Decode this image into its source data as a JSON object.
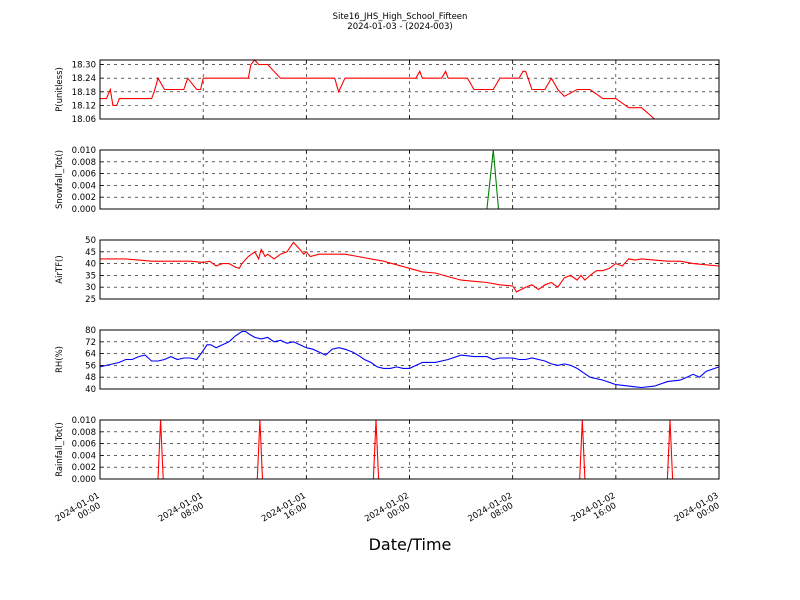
{
  "figure": {
    "title_line1": "Site16_JHS_High_School_Fifteen",
    "title_line2": "2024-01-03 - (2024-003)",
    "xlabel": "Date/Time",
    "x_ticks": [
      {
        "line1": "2024-01-01",
        "line2": "00:00",
        "hours": 0
      },
      {
        "line1": "2024-01-01",
        "line2": "08:00",
        "hours": 8
      },
      {
        "line1": "2024-01-01",
        "line2": "16:00",
        "hours": 16
      },
      {
        "line1": "2024-01-02",
        "line2": "00:00",
        "hours": 24
      },
      {
        "line1": "2024-01-02",
        "line2": "08:00",
        "hours": 32
      },
      {
        "line1": "2024-01-02",
        "line2": "16:00",
        "hours": 40
      },
      {
        "line1": "2024-01-03",
        "line2": "00:00",
        "hours": 48
      }
    ]
  },
  "chart_data": [
    {
      "type": "line",
      "ylabel": "P(unitless)",
      "ylim": [
        18.06,
        18.32
      ],
      "yticks": [
        "18.06",
        "18.12",
        "18.18",
        "18.24",
        "18.30"
      ],
      "ytick_values": [
        18.06,
        18.12,
        18.18,
        18.24,
        18.3
      ],
      "xlim": [
        0,
        48
      ],
      "color": "#ff0000",
      "grid": true,
      "x": [
        0,
        0.5,
        0.8,
        1.0,
        1.3,
        1.5,
        2,
        3,
        4,
        4.2,
        4.5,
        5,
        6,
        6.5,
        6.8,
        7.5,
        7.8,
        8,
        9,
        10,
        11,
        11.5,
        11.7,
        12,
        12.3,
        12.6,
        13,
        14,
        14.2,
        15,
        16,
        17,
        18,
        18.2,
        18.5,
        19,
        20,
        21,
        22,
        24,
        24.5,
        24.8,
        25,
        26,
        26.5,
        26.8,
        27,
        28,
        28.5,
        29,
        30,
        30.5,
        31,
        31.5,
        31.8,
        32,
        32.5,
        32.8,
        33,
        33.5,
        34,
        34.5,
        35,
        35.5,
        36,
        37,
        38,
        39,
        40,
        41,
        41.5,
        42,
        43,
        44,
        46,
        48
      ],
      "y": [
        18.15,
        18.15,
        18.19,
        18.12,
        18.12,
        18.15,
        18.15,
        18.15,
        18.15,
        18.18,
        18.24,
        18.19,
        18.19,
        18.19,
        18.24,
        18.19,
        18.19,
        18.24,
        18.24,
        18.24,
        18.24,
        18.24,
        18.3,
        18.32,
        18.3,
        18.3,
        18.3,
        18.24,
        18.24,
        18.24,
        18.24,
        18.24,
        18.24,
        18.24,
        18.18,
        18.24,
        18.24,
        18.24,
        18.24,
        18.24,
        18.24,
        18.27,
        18.24,
        18.24,
        18.24,
        18.27,
        18.24,
        18.24,
        18.24,
        18.19,
        18.19,
        18.19,
        18.24,
        18.24,
        18.24,
        18.24,
        18.24,
        18.27,
        18.27,
        18.19,
        18.19,
        18.19,
        18.24,
        18.19,
        18.16,
        18.19,
        18.19,
        18.15,
        18.15,
        18.11,
        18.11,
        18.11,
        18.06,
        18.06,
        18.06,
        18.06
      ]
    },
    {
      "type": "line",
      "ylabel": "Snowfall_Tot()",
      "ylim": [
        0,
        0.01
      ],
      "yticks": [
        "0.000",
        "0.002",
        "0.004",
        "0.006",
        "0.008",
        "0.010"
      ],
      "ytick_values": [
        0,
        0.002,
        0.004,
        0.006,
        0.008,
        0.01
      ],
      "xlim": [
        0,
        48
      ],
      "color": "#008000",
      "grid": true,
      "x": [
        0,
        30,
        30.5,
        30.9,
        48
      ],
      "y": [
        0,
        0,
        0.01,
        0,
        0
      ]
    },
    {
      "type": "line",
      "ylabel": "AirTF()",
      "ylim": [
        25,
        50
      ],
      "yticks": [
        "25",
        "30",
        "35",
        "40",
        "45",
        "50"
      ],
      "ytick_values": [
        25,
        30,
        35,
        40,
        45,
        50
      ],
      "xlim": [
        0,
        48
      ],
      "color": "#ff0000",
      "grid": true,
      "x": [
        0,
        1,
        2,
        3,
        4,
        5,
        6,
        7,
        8,
        8.5,
        9,
        9.5,
        10,
        10.5,
        10.8,
        11,
        11.5,
        12,
        12.3,
        12.5,
        12.8,
        13,
        13.5,
        14,
        14.5,
        15,
        15.5,
        15.8,
        16,
        16.3,
        17,
        18,
        19,
        20,
        21,
        22,
        23,
        24,
        25,
        26,
        27,
        28,
        29,
        30,
        31,
        32,
        32.3,
        33,
        33.5,
        34,
        34.5,
        35,
        35.5,
        36,
        36.5,
        37,
        37.3,
        37.6,
        38,
        38.5,
        39,
        39.5,
        40,
        40.5,
        41,
        41.5,
        42,
        43,
        44,
        45,
        46,
        47,
        48
      ],
      "y": [
        42,
        42,
        42,
        41.5,
        41,
        41,
        41,
        41,
        40.5,
        41,
        39,
        40,
        40,
        38.5,
        38,
        40,
        43,
        45,
        42,
        46,
        43,
        44,
        42,
        44,
        45,
        49,
        46,
        44,
        45,
        43,
        44,
        44,
        44,
        43,
        42,
        41,
        39.5,
        38,
        36.5,
        36,
        34.5,
        33,
        32.5,
        32,
        31,
        30.5,
        28,
        30,
        31,
        29,
        31,
        32,
        30,
        34,
        35,
        33,
        35,
        33,
        35,
        37,
        37,
        38,
        40,
        39,
        42,
        41.5,
        42,
        41.5,
        41,
        41,
        40,
        39.5,
        39
      ]
    },
    {
      "type": "line",
      "ylabel": "RH(%)",
      "ylim": [
        40,
        80
      ],
      "yticks": [
        "40",
        "48",
        "56",
        "64",
        "72",
        "80"
      ],
      "ytick_values": [
        40,
        48,
        56,
        64,
        72,
        80
      ],
      "xlim": [
        0,
        48
      ],
      "color": "#0000ff",
      "grid": true,
      "x": [
        0,
        1,
        1.5,
        2,
        2.5,
        3,
        3.5,
        4,
        4.5,
        5,
        5.5,
        6,
        6.5,
        7,
        7.5,
        8,
        8.3,
        8.6,
        9,
        9.5,
        10,
        10.5,
        11,
        11.3,
        11.6,
        12,
        12.5,
        13,
        13.5,
        14,
        14.5,
        15,
        15.5,
        16,
        16.5,
        17,
        17.5,
        18,
        18.5,
        19,
        19.3,
        19.6,
        20,
        20.5,
        21,
        21.5,
        22,
        22.5,
        23,
        23.5,
        24,
        25,
        26,
        27,
        28,
        29,
        30,
        30.5,
        31,
        31.5,
        32,
        32.5,
        33,
        33.5,
        34,
        34.5,
        35,
        35.5,
        36,
        36.5,
        37,
        37.5,
        38,
        39,
        40,
        41,
        42,
        43,
        44,
        45,
        45.5,
        46,
        46.5,
        47,
        48
      ],
      "y": [
        55,
        57,
        58,
        60,
        60,
        62,
        63,
        59,
        59,
        60,
        62,
        60,
        61,
        61,
        60,
        66,
        70,
        70,
        68,
        70,
        72,
        76,
        79,
        79,
        77,
        75,
        74,
        75,
        72,
        73,
        71,
        72,
        70,
        68,
        67,
        65,
        63,
        67,
        68,
        67,
        66,
        65,
        63,
        60,
        58,
        55,
        54,
        54,
        55,
        54,
        54,
        58,
        58,
        60,
        63,
        62,
        62,
        60,
        61,
        61,
        61,
        60,
        60,
        61,
        60,
        59,
        57,
        56,
        57,
        56,
        54,
        51,
        48,
        46,
        43,
        42,
        41,
        42,
        45,
        46,
        48,
        50,
        48,
        52,
        55
      ]
    },
    {
      "type": "line",
      "ylabel": "Rainfall_Tot()",
      "ylim": [
        0,
        0.01
      ],
      "yticks": [
        "0.000",
        "0.002",
        "0.004",
        "0.006",
        "0.008",
        "0.010"
      ],
      "ytick_values": [
        0,
        0.002,
        0.004,
        0.006,
        0.008,
        0.01
      ],
      "xlim": [
        0,
        48
      ],
      "color": "#ff0000",
      "grid": true,
      "x": [
        0,
        4.5,
        4.7,
        4.9,
        12.2,
        12.4,
        12.6,
        21.2,
        21.4,
        21.6,
        37.2,
        37.4,
        37.6,
        44,
        44.2,
        44.4,
        48
      ],
      "y": [
        0,
        0,
        0.01,
        0,
        0,
        0.01,
        0,
        0,
        0.01,
        0,
        0,
        0.01,
        0,
        0,
        0.01,
        0,
        0
      ]
    }
  ]
}
